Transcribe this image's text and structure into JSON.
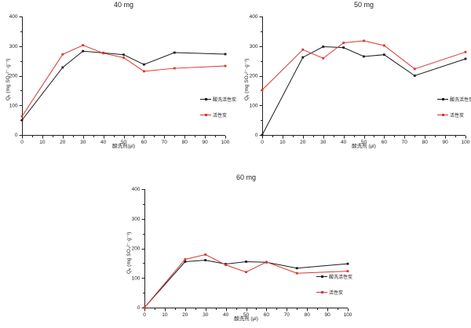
{
  "figure": {
    "background": "#ffffff",
    "axis_color": "#222222"
  },
  "chart_data": [
    {
      "type": "line",
      "title": "40 mg",
      "xlabel": "酸洗剂(μl)",
      "ylabel": "Qₑ (mg SO₄²⁻·g⁻¹)",
      "xlim": [
        0,
        100
      ],
      "ylim": [
        0,
        400
      ],
      "x_major_step": 10,
      "x_minor_step": 5,
      "y_major_step": 100,
      "y_minor_step": 50,
      "grid": false,
      "legend_position": "inside-right",
      "x": [
        0,
        20,
        30,
        40,
        50,
        60,
        75,
        100
      ],
      "series": [
        {
          "name": "酸洗活性炭",
          "color": "#1a1a1a",
          "values": [
            50,
            228,
            283,
            277,
            271,
            238,
            278,
            273
          ]
        },
        {
          "name": "活性炭",
          "color": "#d93632",
          "values": [
            63,
            272,
            303,
            276,
            261,
            215,
            225,
            233
          ]
        }
      ]
    },
    {
      "type": "line",
      "title": "50 mg",
      "xlabel": "酸洗剂 (μl)",
      "ylabel": "Qₑ (mg SO₄²⁻·g⁻¹)",
      "xlim": [
        0,
        100
      ],
      "ylim": [
        0,
        400
      ],
      "x_major_step": 10,
      "x_minor_step": 5,
      "y_major_step": 100,
      "y_minor_step": 50,
      "grid": false,
      "legend_position": "inside-right",
      "x": [
        0,
        20,
        30,
        40,
        50,
        60,
        75,
        100
      ],
      "series": [
        {
          "name": "酸洗活性炭",
          "color": "#1a1a1a",
          "values": [
            0,
            262,
            298,
            295,
            265,
            271,
            200,
            257
          ]
        },
        {
          "name": "活性炭",
          "color": "#d93632",
          "values": [
            152,
            288,
            259,
            311,
            318,
            302,
            223,
            280
          ]
        }
      ]
    },
    {
      "type": "line",
      "title": "60 mg",
      "xlabel": "酸洗剂 (μl)",
      "ylabel": "Qₑ (mg SO₄²⁻·g⁻¹)",
      "xlim": [
        0,
        100
      ],
      "ylim": [
        0,
        400
      ],
      "x_major_step": 10,
      "x_minor_step": 5,
      "y_major_step": 100,
      "y_minor_step": 50,
      "grid": false,
      "legend_position": "inside-right",
      "x": [
        0,
        20,
        30,
        40,
        50,
        60,
        75,
        100
      ],
      "series": [
        {
          "name": "酸洗活性炭",
          "color": "#1a1a1a",
          "values": [
            0,
            155,
            160,
            147,
            155,
            153,
            133,
            148
          ]
        },
        {
          "name": "活性炭",
          "color": "#d93632",
          "values": [
            0,
            163,
            179,
            144,
            120,
            154,
            116,
            123
          ]
        }
      ]
    }
  ]
}
